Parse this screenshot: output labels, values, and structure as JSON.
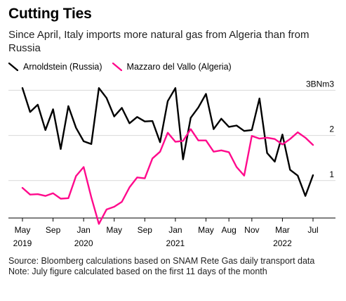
{
  "title": "Cutting Ties",
  "subtitle": "Since April, Italy imports more natural gas from Algeria than from Russia",
  "legend": [
    {
      "label": "Arnoldstein (Russia)",
      "color": "#000000"
    },
    {
      "label": "Mazzaro del Vallo (Algeria)",
      "color": "#ff0a8c"
    }
  ],
  "source": "Source: Bloomberg calculations based on SNAM Rete Gas daily transport data",
  "note": "Note: July figure calculated based on the first 11 days of the month",
  "chart_data": {
    "type": "line",
    "ylabel": "",
    "y_unit": "3BNm3",
    "ylim": [
      0,
      3.2
    ],
    "y_ticks": [
      {
        "value": 3,
        "label": "3BNm3"
      },
      {
        "value": 2,
        "label": "2"
      },
      {
        "value": 1,
        "label": "1"
      }
    ],
    "grid": true,
    "legend_position": "top-left",
    "x": [
      "2019-05",
      "2019-06",
      "2019-07",
      "2019-08",
      "2019-09",
      "2019-10",
      "2019-11",
      "2019-12",
      "2020-01",
      "2020-02",
      "2020-03",
      "2020-04",
      "2020-05",
      "2020-06",
      "2020-07",
      "2020-08",
      "2020-09",
      "2020-10",
      "2020-11",
      "2020-12",
      "2021-01",
      "2021-02",
      "2021-03",
      "2021-04",
      "2021-05",
      "2021-06",
      "2021-07",
      "2021-08",
      "2021-09",
      "2021-10",
      "2021-11",
      "2021-12",
      "2022-01",
      "2022-02",
      "2022-03",
      "2022-04",
      "2022-05",
      "2022-06",
      "2022-07"
    ],
    "x_tick_labels": [
      {
        "x": "2019-05",
        "label": "May",
        "year": "2019"
      },
      {
        "x": "2019-09",
        "label": "Sep",
        "year": ""
      },
      {
        "x": "2020-01",
        "label": "Jan",
        "year": "2020"
      },
      {
        "x": "2020-05",
        "label": "May",
        "year": ""
      },
      {
        "x": "2020-09",
        "label": "Sep",
        "year": ""
      },
      {
        "x": "2021-01",
        "label": "Jan",
        "year": "2021"
      },
      {
        "x": "2021-05",
        "label": "May",
        "year": ""
      },
      {
        "x": "2021-08",
        "label": "Aug",
        "year": ""
      },
      {
        "x": "2021-11",
        "label": "Nov",
        "year": ""
      },
      {
        "x": "2022-03",
        "label": "Mar",
        "year": "2022"
      },
      {
        "x": "2022-07",
        "label": "Jul",
        "year": ""
      }
    ],
    "series": [
      {
        "name": "Arnoldstein (Russia)",
        "color": "#000000",
        "values": [
          3.05,
          2.52,
          2.68,
          2.12,
          2.58,
          1.7,
          2.65,
          2.17,
          1.87,
          1.81,
          3.05,
          2.83,
          2.42,
          2.61,
          2.27,
          2.41,
          2.31,
          2.32,
          1.85,
          2.76,
          3.05,
          1.47,
          2.39,
          2.62,
          2.92,
          2.14,
          2.37,
          2.19,
          2.22,
          2.1,
          2.12,
          2.82,
          1.61,
          1.42,
          2.02,
          1.24,
          1.11,
          0.66,
          1.12
        ]
      },
      {
        "name": "Mazzaro del Vallo (Algeria)",
        "color": "#ff0a8c",
        "values": [
          0.84,
          0.69,
          0.7,
          0.66,
          0.72,
          0.6,
          0.61,
          1.1,
          1.3,
          0.63,
          0.04,
          0.36,
          0.42,
          0.53,
          0.85,
          1.07,
          1.05,
          1.49,
          1.64,
          2.06,
          1.86,
          1.88,
          2.14,
          1.89,
          1.89,
          1.64,
          1.67,
          1.63,
          1.3,
          1.11,
          1.99,
          1.93,
          1.95,
          1.92,
          1.8,
          1.92,
          2.07,
          1.95,
          1.79
        ]
      }
    ]
  }
}
